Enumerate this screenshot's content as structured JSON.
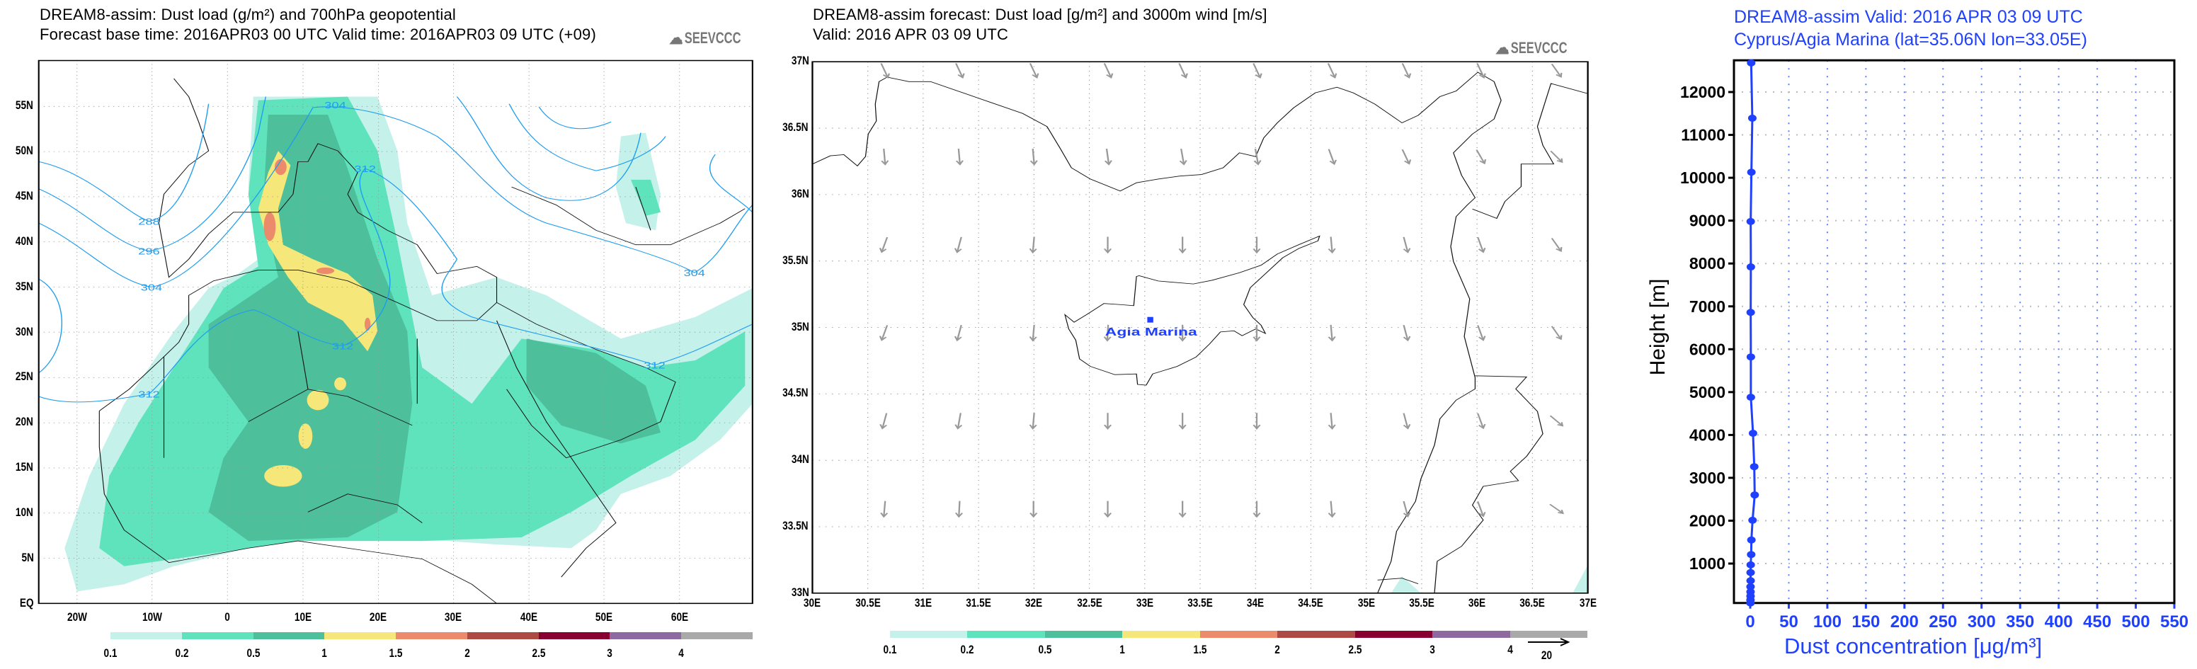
{
  "left_panel": {
    "title": "DREAM8-assim: Dust load (g/m²) and 700hPa geopotential",
    "subtitle": "Forecast base time: 2016APR03 00 UTC   Valid time: 2016APR03 09 UTC   (+09)",
    "logo": "SEEVCCC",
    "lat_labels": [
      "55N",
      "50N",
      "45N",
      "40N",
      "35N",
      "30N",
      "25N",
      "20N",
      "15N",
      "10N",
      "5N",
      "EQ"
    ],
    "lon_labels": [
      "20W",
      "10W",
      "0",
      "10E",
      "20E",
      "30E",
      "40E",
      "50E",
      "60E"
    ],
    "contour_labels": [
      "288",
      "296",
      "304",
      "312",
      "304",
      "312",
      "312",
      "312",
      "304"
    ],
    "colorbar": {
      "labels": [
        "0.1",
        "0.2",
        "0.5",
        "1",
        "1.5",
        "2",
        "2.5",
        "3",
        "4"
      ],
      "colors": [
        "#c4f1ea",
        "#5ee3bd",
        "#4dbf9b",
        "#f5e77a",
        "#ec8b6c",
        "#ad4a43",
        "#880030",
        "#8e6aa0",
        "#a9a9a9"
      ]
    }
  },
  "middle_panel": {
    "title": "DREAM8-assim forecast: Dust load [g/m²] and 3000m wind [m/s]",
    "subtitle": "Valid: 2016 APR 03   09 UTC",
    "logo": "SEEVCCC",
    "lat_labels": [
      "37N",
      "36.5N",
      "36N",
      "35.5N",
      "35N",
      "34.5N",
      "34N",
      "33.5N",
      "33N"
    ],
    "lon_labels": [
      "30E",
      "30.5E",
      "31E",
      "31.5E",
      "32E",
      "32.5E",
      "33E",
      "33.5E",
      "34E",
      "34.5E",
      "35E",
      "35.5E",
      "36E",
      "36.5E",
      "37E"
    ],
    "station_label": "Agia Marina",
    "colorbar": {
      "labels": [
        "0.1",
        "0.2",
        "0.5",
        "1",
        "1.5",
        "2",
        "2.5",
        "3",
        "4"
      ],
      "colors": [
        "#c4f1ea",
        "#5ee3bd",
        "#4dbf9b",
        "#f5e77a",
        "#ec8b6c",
        "#ad4a43",
        "#880030",
        "#8e6aa0",
        "#a9a9a9"
      ]
    },
    "wind_reference": "20",
    "wind_direction_grid_deg": [
      [
        25,
        25,
        25,
        25,
        25,
        25,
        25,
        25,
        25,
        35
      ],
      [
        5,
        5,
        5,
        8,
        10,
        10,
        20,
        25,
        30,
        45
      ],
      [
        -20,
        -15,
        -5,
        0,
        0,
        0,
        5,
        15,
        20,
        35
      ],
      [
        -20,
        -15,
        -5,
        -3,
        0,
        0,
        5,
        15,
        20,
        35
      ],
      [
        -15,
        -10,
        -5,
        0,
        0,
        0,
        5,
        15,
        20,
        50
      ],
      [
        -5,
        -3,
        0,
        0,
        0,
        0,
        5,
        15,
        20,
        55
      ]
    ]
  },
  "chart_data": {
    "type": "line",
    "title": "DREAM8-assim   Valid: 2016 APR 03   09 UTC",
    "subtitle": "Cyprus/Agia Marina (lat=35.06N lon=33.05E)",
    "xlabel": "Dust concentration [μg/m³]",
    "ylabel": "Height [m]",
    "xlim": [
      -20,
      550
    ],
    "ylim": [
      80,
      12740
    ],
    "xticks": [
      "0",
      "50",
      "100",
      "150",
      "200",
      "250",
      "300",
      "350",
      "400",
      "450",
      "500",
      "550"
    ],
    "yticks": [
      "1000",
      "2000",
      "3000",
      "4000",
      "5000",
      "6000",
      "7000",
      "8000",
      "9000",
      "10000",
      "11000",
      "12000"
    ],
    "grid": true,
    "color": "#2040ff",
    "series": [
      {
        "name": "Agia Marina profile",
        "height": [
          12680,
          11390,
          10130,
          8980,
          7920,
          6860,
          5820,
          4880,
          4040,
          3260,
          2600,
          2010,
          1550,
          1210,
          970,
          790,
          600,
          460,
          340,
          240,
          150,
          80
        ],
        "value": [
          1.2,
          2.7,
          1.5,
          0.6,
          0.8,
          0.6,
          0.8,
          0.8,
          3.6,
          5.2,
          5.8,
          3.0,
          1.5,
          1.2,
          0.6,
          0.5,
          0.5,
          0.4,
          0.4,
          0.4,
          0.3,
          0.3
        ]
      }
    ]
  }
}
